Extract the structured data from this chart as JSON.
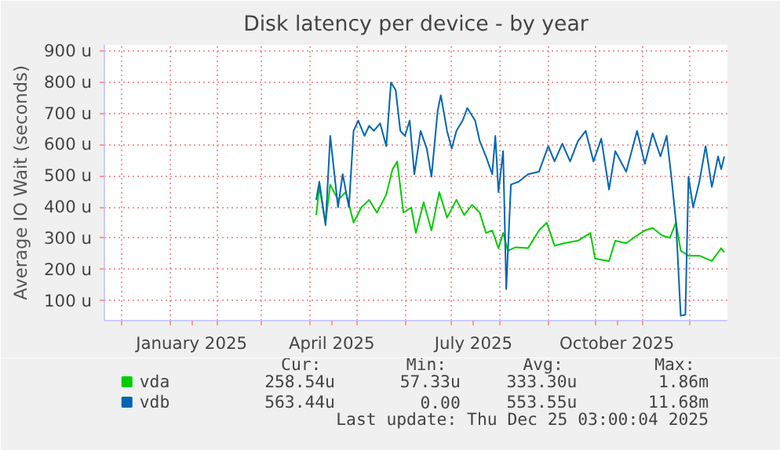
{
  "chart_data": {
    "type": "line",
    "title": "Disk latency per device - by year",
    "ylabel": "Average IO Wait (seconds)",
    "xlim": [
      "2024-11-20",
      "2025-12-25"
    ],
    "ylim": [
      36,
      920
    ],
    "yticks": [
      {
        "value": 100,
        "label": "100 u"
      },
      {
        "value": 200,
        "label": "200 u"
      },
      {
        "value": 300,
        "label": "300 u"
      },
      {
        "value": 400,
        "label": "400 u"
      },
      {
        "value": 500,
        "label": "500 u"
      },
      {
        "value": 600,
        "label": "600 u"
      },
      {
        "value": 700,
        "label": "700 u"
      },
      {
        "value": 800,
        "label": "800 u"
      },
      {
        "value": 900,
        "label": "900 u"
      }
    ],
    "xticks": [
      {
        "value": "2024-12-01",
        "label": null
      },
      {
        "value": "2025-01-01",
        "label": null
      },
      {
        "value": "2025-01-15",
        "label": "January 2025"
      },
      {
        "value": "2025-02-01",
        "label": null
      },
      {
        "value": "2025-03-01",
        "label": null
      },
      {
        "value": "2025-04-01",
        "label": null
      },
      {
        "value": "2025-04-15",
        "label": "April 2025"
      },
      {
        "value": "2025-05-01",
        "label": null
      },
      {
        "value": "2025-06-01",
        "label": null
      },
      {
        "value": "2025-07-01",
        "label": null
      },
      {
        "value": "2025-07-15",
        "label": "July 2025"
      },
      {
        "value": "2025-08-01",
        "label": null
      },
      {
        "value": "2025-09-01",
        "label": null
      },
      {
        "value": "2025-10-01",
        "label": null
      },
      {
        "value": "2025-10-15",
        "label": "October 2025"
      },
      {
        "value": "2025-11-01",
        "label": null
      },
      {
        "value": "2025-12-01",
        "label": null
      }
    ],
    "grid": true,
    "legend": "bottom",
    "series": [
      {
        "name": "vda",
        "color": "#00cc00",
        "x": [
          "2025-04-05",
          "2025-04-07",
          "2025-04-11",
          "2025-04-14",
          "2025-04-19",
          "2025-04-24",
          "2025-04-29",
          "2025-05-04",
          "2025-05-09",
          "2025-05-14",
          "2025-05-20",
          "2025-05-24",
          "2025-05-27",
          "2025-05-31",
          "2025-06-05",
          "2025-06-08",
          "2025-06-13",
          "2025-06-18",
          "2025-06-23",
          "2025-06-28",
          "2025-07-04",
          "2025-07-09",
          "2025-07-14",
          "2025-07-19",
          "2025-07-23",
          "2025-07-27",
          "2025-07-31",
          "2025-08-03",
          "2025-08-06",
          "2025-08-11",
          "2025-08-19",
          "2025-08-26",
          "2025-08-31",
          "2025-09-05",
          "2025-09-11",
          "2025-09-20",
          "2025-09-28",
          "2025-10-01",
          "2025-10-10",
          "2025-10-14",
          "2025-10-21",
          "2025-10-28",
          "2025-11-02",
          "2025-11-07",
          "2025-11-13",
          "2025-11-18",
          "2025-11-22",
          "2025-11-25",
          "2025-11-30",
          "2025-12-07",
          "2025-12-15",
          "2025-12-21",
          "2025-12-23"
        ],
        "values": [
          374,
          464,
          350,
          472,
          423,
          448,
          350,
          399,
          423,
          382,
          440,
          521,
          546,
          382,
          399,
          317,
          415,
          325,
          448,
          366,
          423,
          374,
          407,
          382,
          317,
          325,
          268,
          317,
          260,
          271,
          268,
          325,
          350,
          276,
          284,
          292,
          317,
          235,
          227,
          292,
          284,
          309,
          325,
          333,
          309,
          301,
          350,
          260,
          244,
          244,
          227,
          268,
          255
        ]
      },
      {
        "name": "vdb",
        "color": "#0066b3",
        "x": [
          "2025-04-05",
          "2025-04-07",
          "2025-04-11",
          "2025-04-14",
          "2025-04-19",
          "2025-04-22",
          "2025-04-26",
          "2025-04-29",
          "2025-05-02",
          "2025-05-06",
          "2025-05-09",
          "2025-05-12",
          "2025-05-16",
          "2025-05-20",
          "2025-05-23",
          "2025-05-26",
          "2025-05-29",
          "2025-06-01",
          "2025-06-04",
          "2025-06-07",
          "2025-06-11",
          "2025-06-15",
          "2025-06-18",
          "2025-06-22",
          "2025-06-24",
          "2025-06-28",
          "2025-07-01",
          "2025-07-04",
          "2025-07-08",
          "2025-07-11",
          "2025-07-16",
          "2025-07-19",
          "2025-07-23",
          "2025-07-27",
          "2025-07-29",
          "2025-07-31",
          "2025-08-03",
          "2025-08-05",
          "2025-08-08",
          "2025-08-13",
          "2025-08-19",
          "2025-08-26",
          "2025-09-01",
          "2025-09-05",
          "2025-09-10",
          "2025-09-15",
          "2025-09-20",
          "2025-09-25",
          "2025-09-30",
          "2025-10-05",
          "2025-10-10",
          "2025-10-14",
          "2025-10-21",
          "2025-10-28",
          "2025-11-02",
          "2025-11-07",
          "2025-11-12",
          "2025-11-16",
          "2025-11-19",
          "2025-11-22",
          "2025-11-25",
          "2025-11-28",
          "2025-11-30",
          "2025-12-03",
          "2025-12-07",
          "2025-12-11",
          "2025-12-15",
          "2025-12-19",
          "2025-12-21",
          "2025-12-23"
        ],
        "values": [
          423,
          481,
          342,
          628,
          399,
          505,
          399,
          644,
          677,
          628,
          660,
          644,
          668,
          595,
          799,
          775,
          644,
          628,
          677,
          505,
          644,
          587,
          497,
          709,
          758,
          644,
          587,
          644,
          677,
          717,
          677,
          611,
          562,
          505,
          628,
          448,
          579,
          137,
          472,
          481,
          505,
          513,
          595,
          546,
          603,
          546,
          611,
          644,
          546,
          619,
          456,
          579,
          513,
          644,
          538,
          636,
          562,
          628,
          497,
          350,
          52,
          55,
          497,
          399,
          481,
          595,
          464,
          562,
          521,
          562
        ]
      }
    ],
    "annotations": [
      "Cur:",
      "Min:",
      "Avg:",
      "Max:",
      "258.54u",
      "57.33u",
      "333.30u",
      "1.86m",
      "563.44u",
      "0.00",
      "553.55u",
      "11.68m",
      "Last update: Thu Dec 25 03:00:04 2025"
    ]
  }
}
